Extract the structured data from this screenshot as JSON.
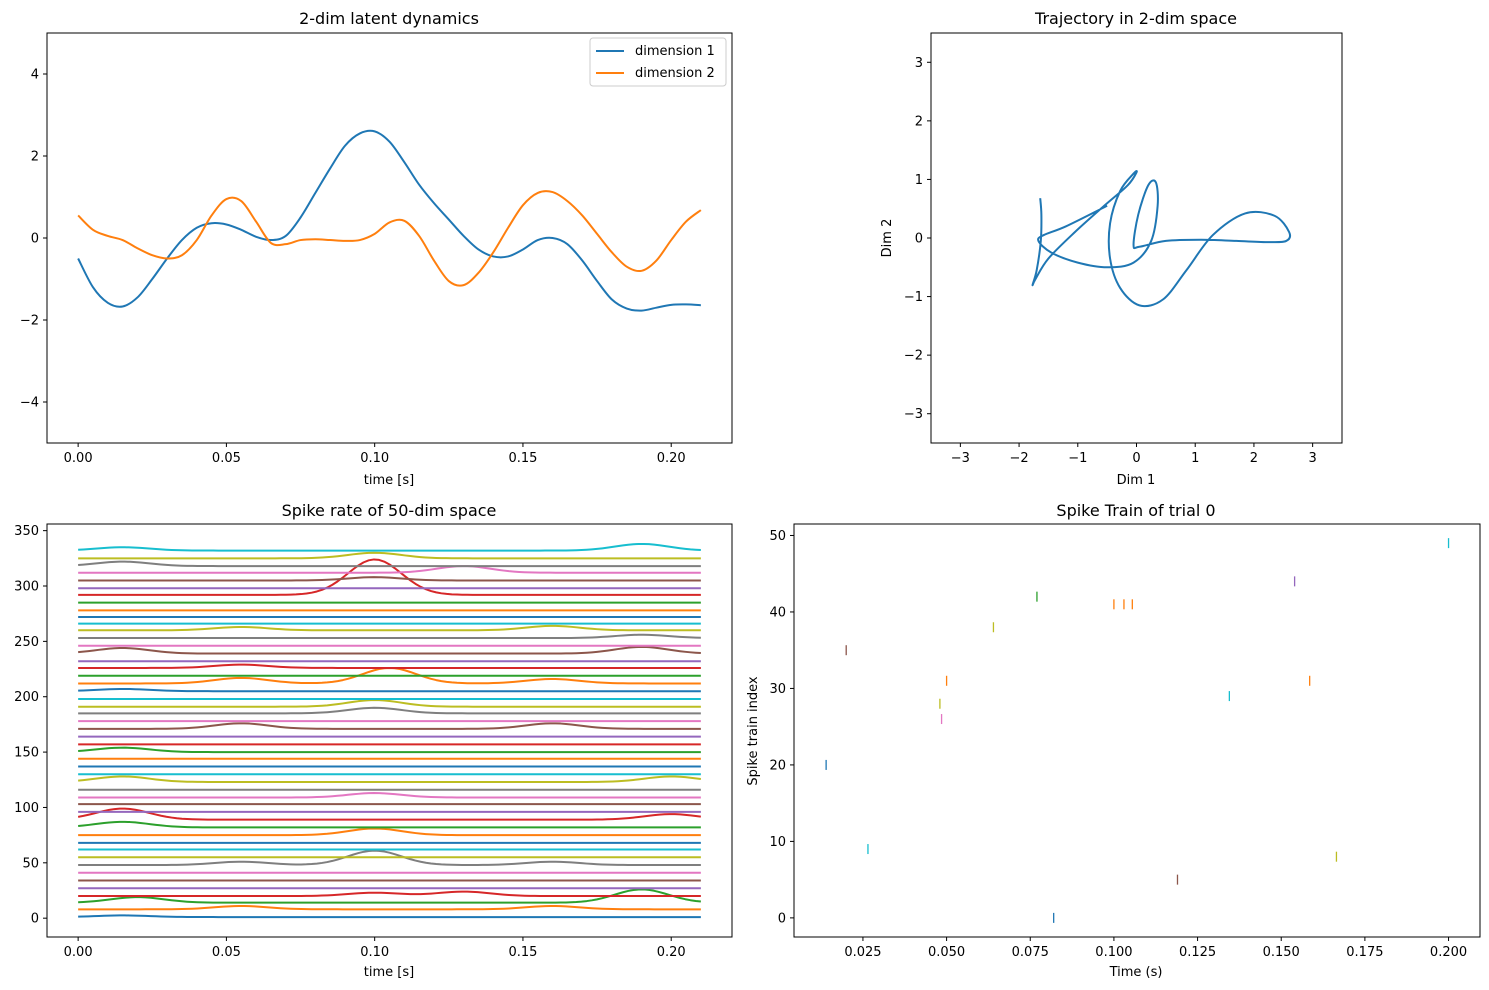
{
  "chart_data": [
    {
      "type": "line",
      "title": "2-dim latent dynamics",
      "xlabel": "time [s]",
      "ylabel": "",
      "xlim": [
        -0.0105,
        0.2205
      ],
      "ylim": [
        -5,
        5
      ],
      "xticks": [
        0.0,
        0.05,
        0.1,
        0.15,
        0.2
      ],
      "xtick_labels": [
        "0.00",
        "0.05",
        "0.10",
        "0.15",
        "0.20"
      ],
      "yticks": [
        -4,
        -2,
        0,
        2,
        4
      ],
      "ytick_labels": [
        "−4",
        "−2",
        "0",
        "2",
        "4"
      ],
      "legend_position": "top-right",
      "series": [
        {
          "name": "dimension 1",
          "color": "#1f77b4",
          "x": [
            0.0,
            0.005,
            0.01,
            0.015,
            0.02,
            0.025,
            0.03,
            0.035,
            0.04,
            0.045,
            0.05,
            0.055,
            0.06,
            0.065,
            0.07,
            0.075,
            0.08,
            0.085,
            0.09,
            0.095,
            0.1,
            0.105,
            0.11,
            0.115,
            0.12,
            0.125,
            0.13,
            0.135,
            0.14,
            0.145,
            0.15,
            0.155,
            0.16,
            0.165,
            0.17,
            0.175,
            0.18,
            0.185,
            0.19,
            0.195,
            0.2,
            0.205,
            0.21
          ],
          "values": [
            -0.5,
            -1.2,
            -1.58,
            -1.67,
            -1.45,
            -1.0,
            -0.5,
            -0.05,
            0.25,
            0.36,
            0.33,
            0.2,
            0.03,
            -0.05,
            0.05,
            0.5,
            1.1,
            1.7,
            2.25,
            2.55,
            2.6,
            2.35,
            1.85,
            1.3,
            0.85,
            0.45,
            0.05,
            -0.28,
            -0.45,
            -0.45,
            -0.28,
            -0.05,
            0.0,
            -0.15,
            -0.55,
            -1.05,
            -1.5,
            -1.72,
            -1.77,
            -1.7,
            -1.63,
            -1.62,
            -1.64
          ]
        },
        {
          "name": "dimension 2",
          "color": "#ff7f0e",
          "x": [
            0.0,
            0.005,
            0.01,
            0.015,
            0.02,
            0.025,
            0.03,
            0.035,
            0.04,
            0.045,
            0.05,
            0.055,
            0.06,
            0.065,
            0.07,
            0.075,
            0.08,
            0.085,
            0.09,
            0.095,
            0.1,
            0.105,
            0.11,
            0.115,
            0.12,
            0.125,
            0.13,
            0.135,
            0.14,
            0.145,
            0.15,
            0.155,
            0.16,
            0.165,
            0.17,
            0.175,
            0.18,
            0.185,
            0.19,
            0.195,
            0.2,
            0.205,
            0.21
          ],
          "values": [
            0.55,
            0.2,
            0.05,
            -0.05,
            -0.25,
            -0.42,
            -0.5,
            -0.42,
            -0.05,
            0.55,
            0.95,
            0.9,
            0.4,
            -0.12,
            -0.15,
            -0.05,
            -0.03,
            -0.05,
            -0.07,
            -0.05,
            0.1,
            0.38,
            0.42,
            0.05,
            -0.55,
            -1.05,
            -1.15,
            -0.85,
            -0.35,
            0.25,
            0.8,
            1.1,
            1.12,
            0.9,
            0.55,
            0.1,
            -0.35,
            -0.7,
            -0.8,
            -0.55,
            -0.05,
            0.4,
            0.68
          ]
        }
      ]
    },
    {
      "type": "line",
      "title": "Trajectory in 2-dim space",
      "xlabel": "Dim 1",
      "ylabel": "Dim 2",
      "xlim": [
        -3.5,
        3.5
      ],
      "ylim": [
        -3.5,
        3.5
      ],
      "xticks": [
        -3,
        -2,
        -1,
        0,
        1,
        2,
        3
      ],
      "xtick_labels": [
        "−3",
        "−2",
        "−1",
        "0",
        "1",
        "2",
        "3"
      ],
      "yticks": [
        -3,
        -2,
        -1,
        0,
        1,
        2,
        3
      ],
      "ytick_labels": [
        "−3",
        "−2",
        "−1",
        "0",
        "1",
        "2",
        "3"
      ],
      "series": [
        {
          "color": "#1f77b4",
          "x": [
            -0.5,
            -1.2,
            -1.58,
            -1.67,
            -1.45,
            -1.0,
            -0.5,
            -0.05,
            0.25,
            0.36,
            0.33,
            0.2,
            0.03,
            -0.05,
            0.05,
            0.5,
            1.1,
            1.7,
            2.25,
            2.55,
            2.6,
            2.35,
            1.85,
            1.3,
            0.85,
            0.45,
            0.05,
            -0.28,
            -0.45,
            -0.45,
            -0.28,
            -0.05,
            0.0,
            -0.15,
            -0.55,
            -1.05,
            -1.5,
            -1.72,
            -1.77,
            -1.7,
            -1.63,
            -1.62,
            -1.64
          ],
          "y": [
            0.55,
            0.2,
            0.05,
            -0.05,
            -0.25,
            -0.42,
            -0.5,
            -0.42,
            -0.05,
            0.55,
            0.95,
            0.9,
            0.4,
            -0.12,
            -0.15,
            -0.05,
            -0.03,
            -0.05,
            -0.07,
            -0.05,
            0.1,
            0.38,
            0.42,
            0.05,
            -0.55,
            -1.05,
            -1.15,
            -0.85,
            -0.35,
            0.25,
            0.8,
            1.1,
            1.12,
            0.9,
            0.55,
            0.1,
            -0.35,
            -0.7,
            -0.8,
            -0.55,
            -0.05,
            0.4,
            0.68
          ]
        }
      ]
    },
    {
      "type": "line",
      "title": "Spike rate of 50-dim space",
      "xlabel": "time [s]",
      "ylabel": "",
      "xlim": [
        -0.0105,
        0.2205
      ],
      "ylim": [
        -17,
        356
      ],
      "xticks": [
        0.0,
        0.05,
        0.1,
        0.15,
        0.2
      ],
      "xtick_labels": [
        "0.00",
        "0.05",
        "0.10",
        "0.15",
        "0.20"
      ],
      "yticks": [
        0,
        50,
        100,
        150,
        200,
        250,
        300,
        350
      ],
      "ytick_labels": [
        "0",
        "50",
        "100",
        "150",
        "200",
        "250",
        "300",
        "350"
      ],
      "x": [
        0.0,
        0.21
      ],
      "series_baselines": [
        1,
        8,
        14,
        20,
        27,
        34,
        41,
        48,
        55,
        62,
        68,
        75,
        82,
        89,
        96,
        103,
        109,
        116,
        123,
        130,
        137,
        144,
        150,
        157,
        164,
        171,
        178,
        185,
        191,
        198,
        205,
        212,
        219,
        226,
        232,
        239,
        246,
        253,
        260,
        266,
        272,
        278,
        285,
        292,
        298,
        305,
        312,
        318,
        325,
        332
      ],
      "bumps": [
        {
          "series": 0,
          "t": 0.015,
          "amp": 1.5
        },
        {
          "series": 1,
          "t": 0.055,
          "amp": 3
        },
        {
          "series": 1,
          "t": 0.16,
          "amp": 3
        },
        {
          "series": 2,
          "t": 0.02,
          "amp": 5
        },
        {
          "series": 2,
          "t": 0.19,
          "amp": 12
        },
        {
          "series": 3,
          "t": 0.1,
          "amp": 3
        },
        {
          "series": 3,
          "t": 0.13,
          "amp": 4
        },
        {
          "series": 7,
          "t": 0.1,
          "amp": 13
        },
        {
          "series": 7,
          "t": 0.055,
          "amp": 3
        },
        {
          "series": 7,
          "t": 0.16,
          "amp": 3
        },
        {
          "series": 11,
          "t": 0.1,
          "amp": 6
        },
        {
          "series": 12,
          "t": 0.015,
          "amp": 5
        },
        {
          "series": 13,
          "t": 0.015,
          "amp": 10
        },
        {
          "series": 13,
          "t": 0.2,
          "amp": 5
        },
        {
          "series": 16,
          "t": 0.1,
          "amp": 4
        },
        {
          "series": 18,
          "t": 0.015,
          "amp": 5
        },
        {
          "series": 18,
          "t": 0.2,
          "amp": 5
        },
        {
          "series": 22,
          "t": 0.015,
          "amp": 4
        },
        {
          "series": 25,
          "t": 0.055,
          "amp": 5
        },
        {
          "series": 25,
          "t": 0.16,
          "amp": 5
        },
        {
          "series": 27,
          "t": 0.1,
          "amp": 5
        },
        {
          "series": 28,
          "t": 0.1,
          "amp": 6
        },
        {
          "series": 30,
          "t": 0.015,
          "amp": 2
        },
        {
          "series": 31,
          "t": 0.055,
          "amp": 5
        },
        {
          "series": 31,
          "t": 0.105,
          "amp": 14
        },
        {
          "series": 31,
          "t": 0.16,
          "amp": 4
        },
        {
          "series": 33,
          "t": 0.055,
          "amp": 3
        },
        {
          "series": 35,
          "t": 0.015,
          "amp": 5
        },
        {
          "series": 35,
          "t": 0.19,
          "amp": 6
        },
        {
          "series": 37,
          "t": 0.19,
          "amp": 3
        },
        {
          "series": 38,
          "t": 0.055,
          "amp": 3
        },
        {
          "series": 38,
          "t": 0.16,
          "amp": 4
        },
        {
          "series": 43,
          "t": 0.1,
          "amp": 32
        },
        {
          "series": 45,
          "t": 0.1,
          "amp": 3
        },
        {
          "series": 46,
          "t": 0.13,
          "amp": 6
        },
        {
          "series": 47,
          "t": 0.015,
          "amp": 4
        },
        {
          "series": 48,
          "t": 0.1,
          "amp": 5
        },
        {
          "series": 49,
          "t": 0.015,
          "amp": 3
        },
        {
          "series": 49,
          "t": 0.19,
          "amp": 6
        }
      ]
    },
    {
      "type": "scatter",
      "title": "Spike Train of trial 0",
      "xlabel": "Time (s)",
      "ylabel": "Spike train index",
      "xlim": [
        0.0044,
        0.2094
      ],
      "ylim": [
        -2.5,
        51.5
      ],
      "xticks": [
        0.025,
        0.05,
        0.075,
        0.1,
        0.125,
        0.15,
        0.175,
        0.2
      ],
      "xtick_labels": [
        "0.025",
        "0.050",
        "0.075",
        "0.100",
        "0.125",
        "0.150",
        "0.175",
        "0.200"
      ],
      "yticks": [
        0,
        10,
        20,
        30,
        40,
        50
      ],
      "ytick_labels": [
        "0",
        "10",
        "20",
        "30",
        "40",
        "50"
      ],
      "spikes": [
        {
          "t": 0.014,
          "y": 20
        },
        {
          "t": 0.02,
          "y": 35
        },
        {
          "t": 0.0265,
          "y": 9
        },
        {
          "t": 0.048,
          "y": 28
        },
        {
          "t": 0.0485,
          "y": 26
        },
        {
          "t": 0.05,
          "y": 31
        },
        {
          "t": 0.064,
          "y": 38
        },
        {
          "t": 0.077,
          "y": 42
        },
        {
          "t": 0.082,
          "y": 0
        },
        {
          "t": 0.1,
          "y": 41
        },
        {
          "t": 0.103,
          "y": 41
        },
        {
          "t": 0.1055,
          "y": 41
        },
        {
          "t": 0.119,
          "y": 5
        },
        {
          "t": 0.1345,
          "y": 29
        },
        {
          "t": 0.154,
          "y": 44
        },
        {
          "t": 0.1585,
          "y": 31
        },
        {
          "t": 0.1665,
          "y": 8
        },
        {
          "t": 0.2,
          "y": 49
        }
      ]
    }
  ],
  "palette": [
    "#1f77b4",
    "#ff7f0e",
    "#2ca02c",
    "#d62728",
    "#9467bd",
    "#8c564b",
    "#e377c2",
    "#7f7f7f",
    "#bcbd22",
    "#17becf"
  ]
}
